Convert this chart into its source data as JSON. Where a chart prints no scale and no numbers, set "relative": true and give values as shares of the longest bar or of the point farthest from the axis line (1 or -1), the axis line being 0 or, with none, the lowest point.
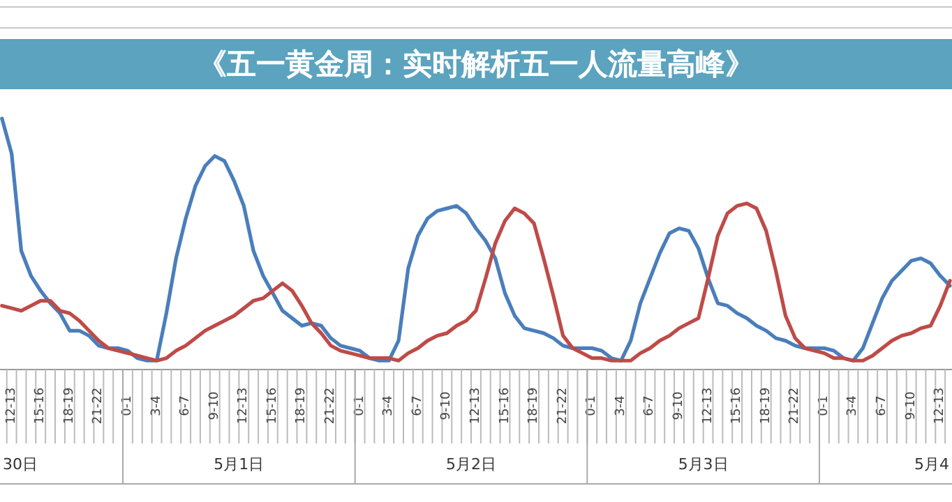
{
  "chart_data": {
    "type": "line",
    "relative": true,
    "title": "《五一黄金周：实时解析五一人流量高峰》",
    "categories": [
      null,
      "12-13",
      null,
      null,
      "15-16",
      null,
      null,
      "18-19",
      null,
      null,
      "21-22",
      null,
      null,
      "0-1",
      null,
      null,
      "3-4",
      null,
      null,
      "6-7",
      null,
      null,
      "9-10",
      null,
      null,
      "12-13",
      null,
      null,
      "15-16",
      null,
      null,
      "18-19",
      null,
      null,
      "21-22",
      null,
      null,
      "0-1",
      null,
      null,
      "3-4",
      null,
      null,
      "6-7",
      null,
      null,
      "9-10",
      null,
      null,
      "12-13",
      null,
      null,
      "15-16",
      null,
      null,
      "18-19",
      null,
      null,
      "21-22",
      null,
      null,
      "0-1",
      null,
      null,
      "3-4",
      null,
      null,
      "6-7",
      null,
      null,
      "9-10",
      null,
      null,
      "12-13",
      null,
      null,
      "15-16",
      null,
      null,
      "18-19",
      null,
      null,
      "21-22",
      null,
      null,
      "0-1",
      null,
      null,
      "3-4",
      null,
      null,
      "6-7",
      null,
      null,
      "9-10",
      null,
      null,
      "12-13",
      null
    ],
    "series": [
      {
        "color": "#4a7ebb",
        "values": [
          1.0,
          0.86,
          0.47,
          0.37,
          0.31,
          0.26,
          0.22,
          0.15,
          0.15,
          0.13,
          0.09,
          0.08,
          0.08,
          0.07,
          0.04,
          0.03,
          0.03,
          0.22,
          0.44,
          0.6,
          0.73,
          0.81,
          0.85,
          0.83,
          0.75,
          0.65,
          0.47,
          0.37,
          0.3,
          0.23,
          0.2,
          0.17,
          0.18,
          0.17,
          0.12,
          0.09,
          0.08,
          0.07,
          0.04,
          0.03,
          0.03,
          0.11,
          0.4,
          0.53,
          0.6,
          0.63,
          0.64,
          0.65,
          0.62,
          0.56,
          0.51,
          0.44,
          0.3,
          0.21,
          0.16,
          0.15,
          0.14,
          0.12,
          0.09,
          0.08,
          0.08,
          0.08,
          0.07,
          0.04,
          0.03,
          0.11,
          0.26,
          0.36,
          0.46,
          0.54,
          0.56,
          0.55,
          0.48,
          0.36,
          0.26,
          0.25,
          0.22,
          0.2,
          0.17,
          0.15,
          0.12,
          0.11,
          0.09,
          0.08,
          0.08,
          0.08,
          0.07,
          0.04,
          0.03,
          0.08,
          0.18,
          0.28,
          0.35,
          0.39,
          0.43,
          0.44,
          0.42,
          0.37,
          0.33
        ]
      },
      {
        "color": "#be4b48",
        "values": [
          0.25,
          0.24,
          0.23,
          0.25,
          0.27,
          0.27,
          0.23,
          0.22,
          0.19,
          0.15,
          0.11,
          0.08,
          0.07,
          0.06,
          0.05,
          0.04,
          0.03,
          0.04,
          0.07,
          0.09,
          0.12,
          0.15,
          0.17,
          0.19,
          0.21,
          0.24,
          0.27,
          0.28,
          0.31,
          0.34,
          0.31,
          0.25,
          0.18,
          0.14,
          0.09,
          0.07,
          0.06,
          0.05,
          0.04,
          0.04,
          0.04,
          0.03,
          0.06,
          0.08,
          0.11,
          0.13,
          0.14,
          0.17,
          0.19,
          0.23,
          0.36,
          0.5,
          0.59,
          0.64,
          0.62,
          0.58,
          0.44,
          0.29,
          0.13,
          0.08,
          0.06,
          0.04,
          0.04,
          0.03,
          0.03,
          0.03,
          0.06,
          0.08,
          0.11,
          0.13,
          0.16,
          0.18,
          0.2,
          0.36,
          0.53,
          0.62,
          0.65,
          0.66,
          0.64,
          0.55,
          0.39,
          0.21,
          0.12,
          0.08,
          0.07,
          0.06,
          0.04,
          0.04,
          0.03,
          0.03,
          0.05,
          0.08,
          0.11,
          0.13,
          0.14,
          0.16,
          0.17,
          0.25,
          0.35
        ]
      }
    ],
    "annotations": [
      "30日",
      "5月1日",
      "5月2日",
      "5月3日",
      "5月4"
    ]
  }
}
